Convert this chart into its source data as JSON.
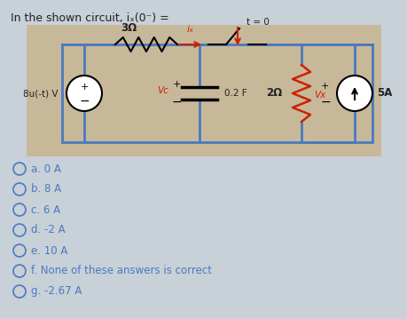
{
  "title": "In the shown circuit, iₓ(0⁻) =",
  "bg_color": "#c8d0d8",
  "circuit_bg": "#c8b89a",
  "circuit_border": "#4a7abf",
  "choices": [
    "a. 0 A",
    "b. 8 A",
    "c. 6 A",
    "d. -2 A",
    "e. 10 A",
    "f. None of these answers is correct",
    "g. -2.67 A"
  ],
  "source_label": "8u(-t) V",
  "resistor1_label": "3Ω",
  "current_label": "iₓ",
  "capacitor_label": "0.2 F",
  "vc_label": "Vc",
  "resistor2_label": "2Ω",
  "vx_label": "Vx",
  "current_source_label": "5A",
  "switch_label": "t = 0",
  "title_fontsize": 9,
  "choice_fontsize": 8.5,
  "choice_color": "#4a7abf",
  "text_color": "#222222",
  "red_color": "#cc2200",
  "blue_color": "#4a7abf"
}
